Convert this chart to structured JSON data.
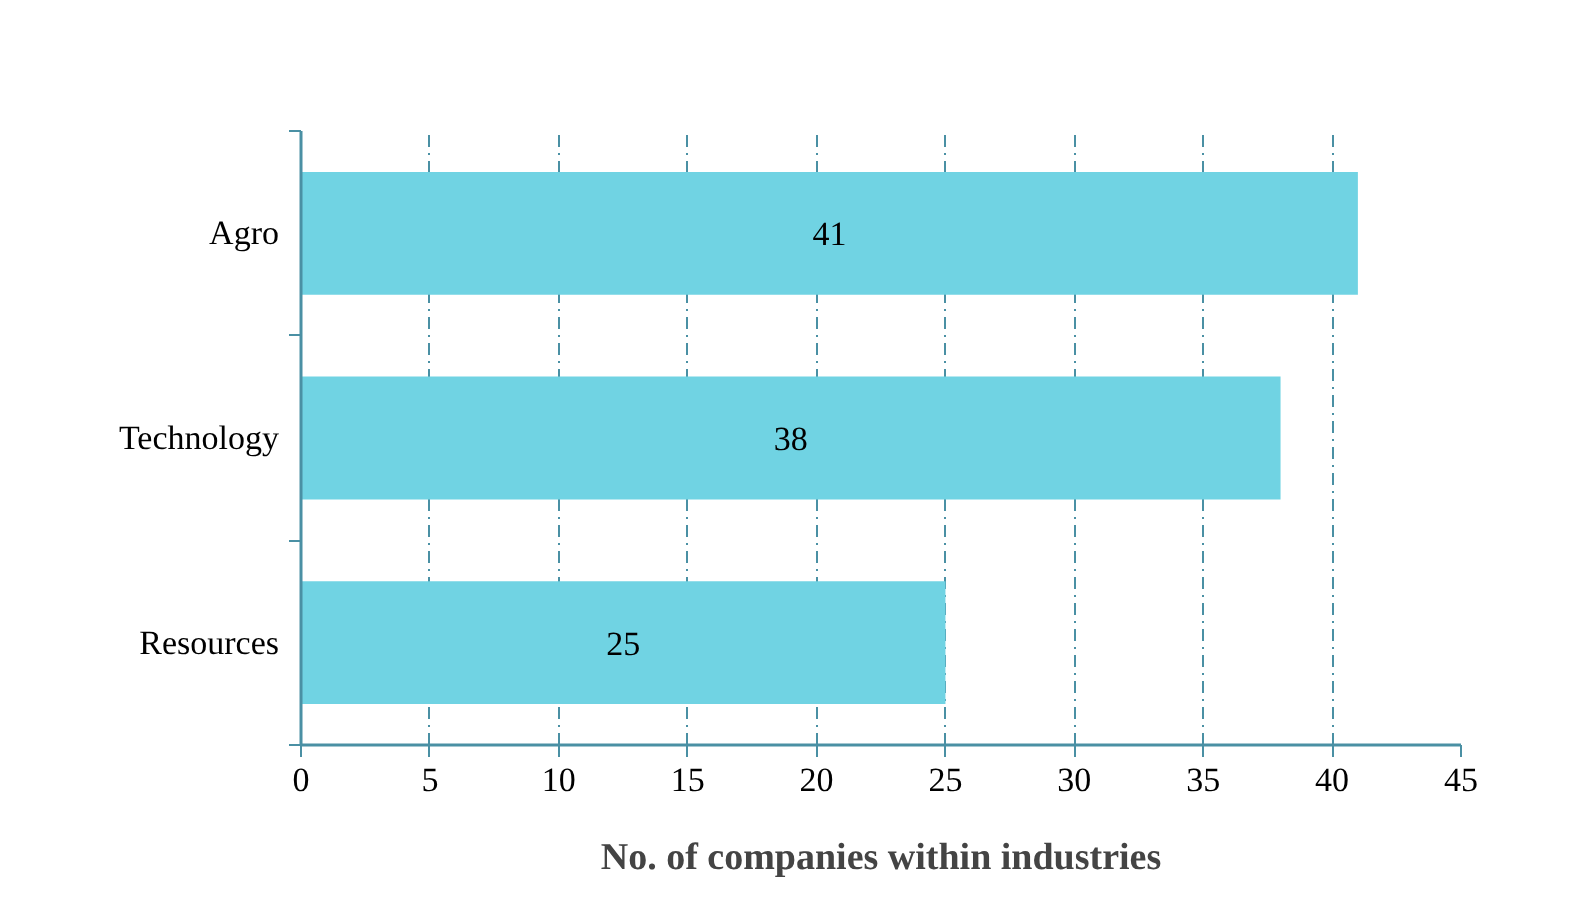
{
  "chart_data": {
    "type": "bar",
    "orientation": "horizontal",
    "categories": [
      "Agro",
      "Technology",
      "Resources"
    ],
    "values": [
      41,
      38,
      25
    ],
    "color": "#70d3e3",
    "xlim": [
      0,
      45
    ],
    "xticks": [
      0,
      5,
      10,
      15,
      20,
      25,
      30,
      35,
      40,
      45
    ],
    "xlabel": "No. of companies within industries",
    "grid": "x",
    "data_labels": true
  }
}
